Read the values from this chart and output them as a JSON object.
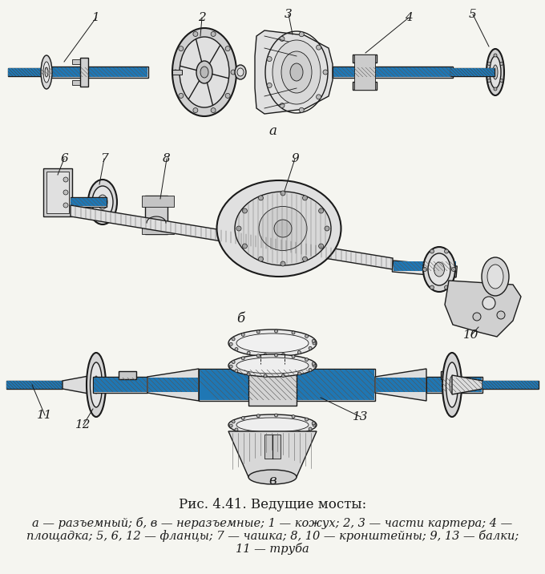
{
  "title": "Рис. 4.41. Ведущие мосты:",
  "caption_line1": "а — разъемный; б, в — неразъемные; 1 — кожух; 2, 3 — части картера; 4 —",
  "caption_line2": "площадка; 5, 6, 12 — фланцы; 7 — чашка; 8, 10 — кронштейны; 9, 13 — балки;",
  "caption_line3": "11 — труба",
  "label_a": "а",
  "label_b": "б",
  "label_v": "в",
  "bg_color": "#f5f5f0",
  "line_color": "#1a1a1a",
  "title_fontsize": 12,
  "caption_fontsize": 10.5,
  "label_fontsize": 11,
  "annot_fontsize": 11
}
